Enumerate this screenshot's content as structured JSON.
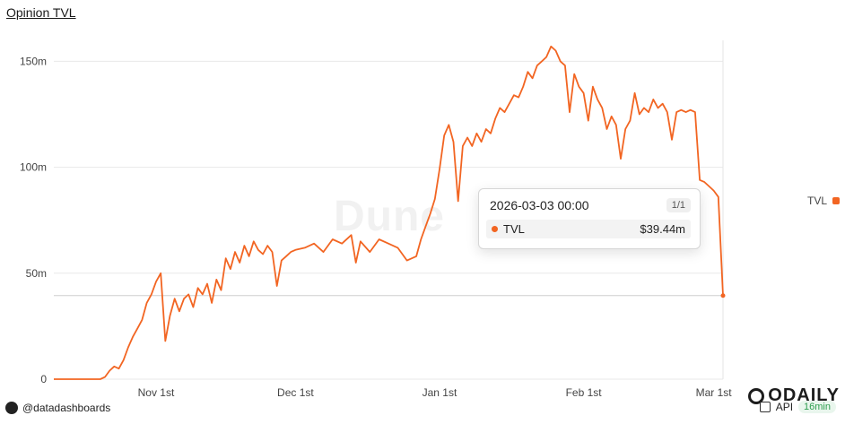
{
  "header": {
    "title": "Opinion TVL"
  },
  "watermark": {
    "text": "Dune"
  },
  "legend": {
    "label": "TVL",
    "color": "#f26522"
  },
  "tooltip": {
    "date": "2026-03-03 00:00",
    "pager": "1/1",
    "series_label": "TVL",
    "value": "$39.44m"
  },
  "footer": {
    "author": "@datadashboards",
    "api_label": "API",
    "badge": "16min",
    "brand": "ODAILY"
  },
  "chart_data": {
    "type": "line",
    "title": "Opinion TVL",
    "ylim": [
      0,
      162
    ],
    "y_ticks": [
      0,
      50,
      100,
      150
    ],
    "y_tick_labels": [
      "0",
      "50m",
      "100m",
      "150m"
    ],
    "x_tick_labels": [
      "Nov 1st",
      "Dec 1st",
      "Jan 1st",
      "Feb 1st",
      "Mar 1st"
    ],
    "x_tick_dates": [
      "2025-11-01",
      "2025-12-01",
      "2026-01-01",
      "2026-02-01",
      "2026-03-01"
    ],
    "grid": true,
    "legend_position": "right",
    "series": [
      {
        "name": "TVL",
        "color": "#f26522",
        "points": [
          [
            "2025-10-10",
            0
          ],
          [
            "2025-10-20",
            0
          ],
          [
            "2025-10-21",
            1
          ],
          [
            "2025-10-22",
            4
          ],
          [
            "2025-10-23",
            6
          ],
          [
            "2025-10-24",
            5
          ],
          [
            "2025-10-25",
            9
          ],
          [
            "2025-10-26",
            15
          ],
          [
            "2025-10-27",
            20
          ],
          [
            "2025-10-28",
            24
          ],
          [
            "2025-10-29",
            28
          ],
          [
            "2025-10-30",
            36
          ],
          [
            "2025-10-31",
            40
          ],
          [
            "2025-11-01",
            46
          ],
          [
            "2025-11-02",
            50
          ],
          [
            "2025-11-03",
            18
          ],
          [
            "2025-11-04",
            30
          ],
          [
            "2025-11-05",
            38
          ],
          [
            "2025-11-06",
            32
          ],
          [
            "2025-11-07",
            38
          ],
          [
            "2025-11-08",
            40
          ],
          [
            "2025-11-09",
            34
          ],
          [
            "2025-11-10",
            43
          ],
          [
            "2025-11-11",
            40
          ],
          [
            "2025-11-12",
            45
          ],
          [
            "2025-11-13",
            36
          ],
          [
            "2025-11-14",
            47
          ],
          [
            "2025-11-15",
            42
          ],
          [
            "2025-11-16",
            57
          ],
          [
            "2025-11-17",
            52
          ],
          [
            "2025-11-18",
            60
          ],
          [
            "2025-11-19",
            55
          ],
          [
            "2025-11-20",
            63
          ],
          [
            "2025-11-21",
            58
          ],
          [
            "2025-11-22",
            65
          ],
          [
            "2025-11-23",
            61
          ],
          [
            "2025-11-24",
            59
          ],
          [
            "2025-11-25",
            63
          ],
          [
            "2025-11-26",
            60
          ],
          [
            "2025-11-27",
            44
          ],
          [
            "2025-11-28",
            56
          ],
          [
            "2025-11-29",
            58
          ],
          [
            "2025-11-30",
            60
          ],
          [
            "2025-12-01",
            61
          ],
          [
            "2025-12-03",
            62
          ],
          [
            "2025-12-05",
            64
          ],
          [
            "2025-12-07",
            60
          ],
          [
            "2025-12-09",
            66
          ],
          [
            "2025-12-11",
            64
          ],
          [
            "2025-12-13",
            68
          ],
          [
            "2025-12-14",
            55
          ],
          [
            "2025-12-15",
            65
          ],
          [
            "2025-12-17",
            60
          ],
          [
            "2025-12-19",
            66
          ],
          [
            "2025-12-21",
            64
          ],
          [
            "2025-12-23",
            62
          ],
          [
            "2025-12-25",
            56
          ],
          [
            "2025-12-27",
            58
          ],
          [
            "2025-12-28",
            66
          ],
          [
            "2025-12-29",
            72
          ],
          [
            "2025-12-30",
            78
          ],
          [
            "2025-12-31",
            85
          ],
          [
            "2026-01-01",
            99
          ],
          [
            "2026-01-02",
            115
          ],
          [
            "2026-01-03",
            120
          ],
          [
            "2026-01-04",
            112
          ],
          [
            "2026-01-05",
            84
          ],
          [
            "2026-01-06",
            110
          ],
          [
            "2026-01-07",
            114
          ],
          [
            "2026-01-08",
            110
          ],
          [
            "2026-01-09",
            116
          ],
          [
            "2026-01-10",
            112
          ],
          [
            "2026-01-11",
            118
          ],
          [
            "2026-01-12",
            116
          ],
          [
            "2026-01-13",
            123
          ],
          [
            "2026-01-14",
            128
          ],
          [
            "2026-01-15",
            126
          ],
          [
            "2026-01-16",
            130
          ],
          [
            "2026-01-17",
            134
          ],
          [
            "2026-01-18",
            133
          ],
          [
            "2026-01-19",
            138
          ],
          [
            "2026-01-20",
            145
          ],
          [
            "2026-01-21",
            142
          ],
          [
            "2026-01-22",
            148
          ],
          [
            "2026-01-23",
            150
          ],
          [
            "2026-01-24",
            152
          ],
          [
            "2026-01-25",
            157
          ],
          [
            "2026-01-26",
            155
          ],
          [
            "2026-01-27",
            150
          ],
          [
            "2026-01-28",
            148
          ],
          [
            "2026-01-29",
            126
          ],
          [
            "2026-01-30",
            144
          ],
          [
            "2026-01-31",
            138
          ],
          [
            "2026-02-01",
            135
          ],
          [
            "2026-02-02",
            122
          ],
          [
            "2026-02-03",
            138
          ],
          [
            "2026-02-04",
            132
          ],
          [
            "2026-02-05",
            128
          ],
          [
            "2026-02-06",
            118
          ],
          [
            "2026-02-07",
            124
          ],
          [
            "2026-02-08",
            120
          ],
          [
            "2026-02-09",
            104
          ],
          [
            "2026-02-10",
            118
          ],
          [
            "2026-02-11",
            122
          ],
          [
            "2026-02-12",
            135
          ],
          [
            "2026-02-13",
            125
          ],
          [
            "2026-02-14",
            128
          ],
          [
            "2026-02-15",
            126
          ],
          [
            "2026-02-16",
            132
          ],
          [
            "2026-02-17",
            128
          ],
          [
            "2026-02-18",
            130
          ],
          [
            "2026-02-19",
            126
          ],
          [
            "2026-02-20",
            113
          ],
          [
            "2026-02-21",
            126
          ],
          [
            "2026-02-22",
            127
          ],
          [
            "2026-02-23",
            126
          ],
          [
            "2026-02-24",
            127
          ],
          [
            "2026-02-25",
            126
          ],
          [
            "2026-02-26",
            94
          ],
          [
            "2026-02-27",
            93
          ],
          [
            "2026-02-28",
            91
          ],
          [
            "2026-03-01",
            89
          ],
          [
            "2026-03-02",
            86
          ],
          [
            "2026-03-03",
            39.44
          ]
        ]
      }
    ]
  }
}
